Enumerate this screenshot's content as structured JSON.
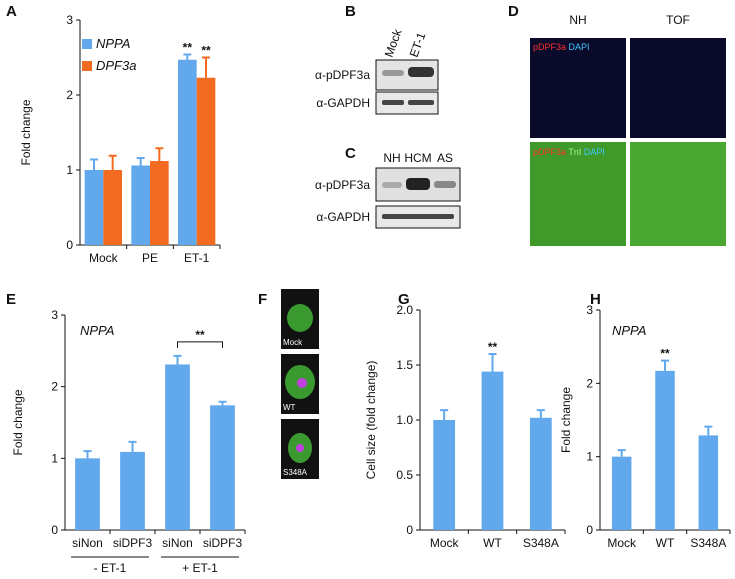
{
  "panel_letters": [
    "A",
    "B",
    "C",
    "D",
    "E",
    "F",
    "G",
    "H"
  ],
  "blot_b": {
    "lanes": [
      "Mock",
      "ET-1"
    ],
    "rows": [
      "α-pDPF3a",
      "α-GAPDH"
    ]
  },
  "blot_c": {
    "lanes": [
      "NH",
      "HCM",
      "AS"
    ],
    "rows": [
      "α-pDPF3a",
      "α-GAPDH"
    ]
  },
  "panel_d": {
    "columns": [
      "NH",
      "TOF"
    ],
    "stain_top": [
      "pDPF3a",
      "DAPI"
    ],
    "stain_bottom": [
      "pDPF3a",
      "TnI",
      "DAPI"
    ]
  },
  "panel_f": {
    "labels": [
      "Mock",
      "WT",
      "S348A"
    ]
  },
  "chart_data": [
    {
      "type": "bar",
      "ylabel": "Fold change",
      "categories": [
        "Mock",
        "PE",
        "ET-1"
      ],
      "series": [
        {
          "name": "NPPA",
          "color": "#62a8ec",
          "values": [
            1.0,
            1.06,
            2.47
          ],
          "errors": [
            0.14,
            0.1,
            0.07
          ],
          "sig_labels": [
            null,
            null,
            "**"
          ]
        },
        {
          "name": "DPF3a",
          "color": "#f36a21",
          "values": [
            1.0,
            1.12,
            2.23
          ],
          "errors": [
            0.19,
            0.17,
            0.27
          ],
          "sig_labels": [
            null,
            null,
            "**"
          ]
        }
      ],
      "ylim": [
        0,
        3
      ],
      "yticks": [
        0,
        1,
        2,
        3
      ]
    },
    {
      "type": "bar",
      "ylabel": "Fold change",
      "annotation": "NPPA",
      "categories": [
        "siNon",
        "siDPF3",
        "siNon",
        "siDPF3"
      ],
      "groups": [
        "- ET-1",
        "+ ET-1"
      ],
      "bracket_label": "**",
      "series": [
        {
          "color": "#62a8ec",
          "values": [
            1.0,
            1.09,
            2.31,
            1.74
          ],
          "errors": [
            0.1,
            0.14,
            0.12,
            0.05
          ]
        }
      ],
      "ylim": [
        0,
        3
      ],
      "yticks": [
        0,
        1,
        2,
        3
      ]
    },
    {
      "type": "bar",
      "ylabel": "Cell size (fold change)",
      "categories": [
        "Mock",
        "WT",
        "S348A"
      ],
      "series": [
        {
          "color": "#62a8ec",
          "values": [
            1.0,
            1.44,
            1.02
          ],
          "errors": [
            0.09,
            0.16,
            0.07
          ],
          "sig_labels": [
            null,
            "**",
            null
          ]
        }
      ],
      "ylim": [
        0,
        2
      ],
      "yticks": [
        0,
        0.5,
        {
          "value": 1,
          "label": "1.0"
        },
        1.5,
        {
          "value": 2,
          "label": "2.0"
        }
      ]
    },
    {
      "type": "bar",
      "ylabel": "Fold change",
      "annotation": "NPPA",
      "categories": [
        "Mock",
        "WT",
        "S348A"
      ],
      "series": [
        {
          "color": "#62a8ec",
          "values": [
            1.0,
            2.17,
            1.29
          ],
          "errors": [
            0.09,
            0.14,
            0.12
          ],
          "sig_labels": [
            null,
            "**",
            null
          ]
        }
      ],
      "ylim": [
        0,
        3
      ],
      "yticks": [
        0,
        1,
        2,
        3
      ]
    }
  ]
}
